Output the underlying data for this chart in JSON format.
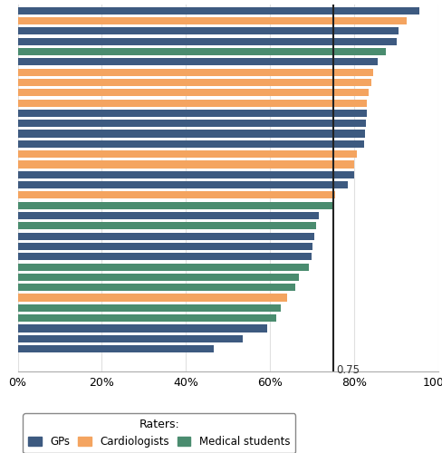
{
  "bars": [
    {
      "value": 0.955,
      "color": "#3d5a80"
    },
    {
      "value": 0.925,
      "color": "#f4a460"
    },
    {
      "value": 0.905,
      "color": "#3d5a80"
    },
    {
      "value": 0.9,
      "color": "#3d5a80"
    },
    {
      "value": 0.875,
      "color": "#4a8c6f"
    },
    {
      "value": 0.855,
      "color": "#3d5a80"
    },
    {
      "value": 0.845,
      "color": "#f4a460"
    },
    {
      "value": 0.84,
      "color": "#f4a460"
    },
    {
      "value": 0.835,
      "color": "#f4a460"
    },
    {
      "value": 0.83,
      "color": "#f4a460"
    },
    {
      "value": 0.83,
      "color": "#3d5a80"
    },
    {
      "value": 0.828,
      "color": "#3d5a80"
    },
    {
      "value": 0.825,
      "color": "#3d5a80"
    },
    {
      "value": 0.823,
      "color": "#3d5a80"
    },
    {
      "value": 0.805,
      "color": "#f4a460"
    },
    {
      "value": 0.8,
      "color": "#f4a460"
    },
    {
      "value": 0.8,
      "color": "#3d5a80"
    },
    {
      "value": 0.785,
      "color": "#3d5a80"
    },
    {
      "value": 0.755,
      "color": "#f4a460"
    },
    {
      "value": 0.75,
      "color": "#4a8c6f"
    },
    {
      "value": 0.715,
      "color": "#3d5a80"
    },
    {
      "value": 0.71,
      "color": "#4a8c6f"
    },
    {
      "value": 0.705,
      "color": "#3d5a80"
    },
    {
      "value": 0.7,
      "color": "#3d5a80"
    },
    {
      "value": 0.698,
      "color": "#3d5a80"
    },
    {
      "value": 0.693,
      "color": "#4a8c6f"
    },
    {
      "value": 0.668,
      "color": "#4a8c6f"
    },
    {
      "value": 0.66,
      "color": "#4a8c6f"
    },
    {
      "value": 0.64,
      "color": "#f4a460"
    },
    {
      "value": 0.625,
      "color": "#4a8c6f"
    },
    {
      "value": 0.615,
      "color": "#4a8c6f"
    },
    {
      "value": 0.593,
      "color": "#3d5a80"
    },
    {
      "value": 0.535,
      "color": "#3d5a80"
    },
    {
      "value": 0.465,
      "color": "#3d5a80"
    }
  ],
  "mean_line": 0.75,
  "mean_label": "0.75",
  "gp_color": "#3d5a80",
  "cardio_color": "#f4a460",
  "student_color": "#4a8c6f",
  "bg_color": "#ffffff",
  "legend_title": "Raters:",
  "xlim": [
    0,
    1.0
  ],
  "xticks": [
    0,
    0.2,
    0.4,
    0.6,
    0.8,
    1.0
  ],
  "xticklabels": [
    "0%",
    "20%",
    "40%",
    "60%",
    "80%",
    "100%"
  ]
}
